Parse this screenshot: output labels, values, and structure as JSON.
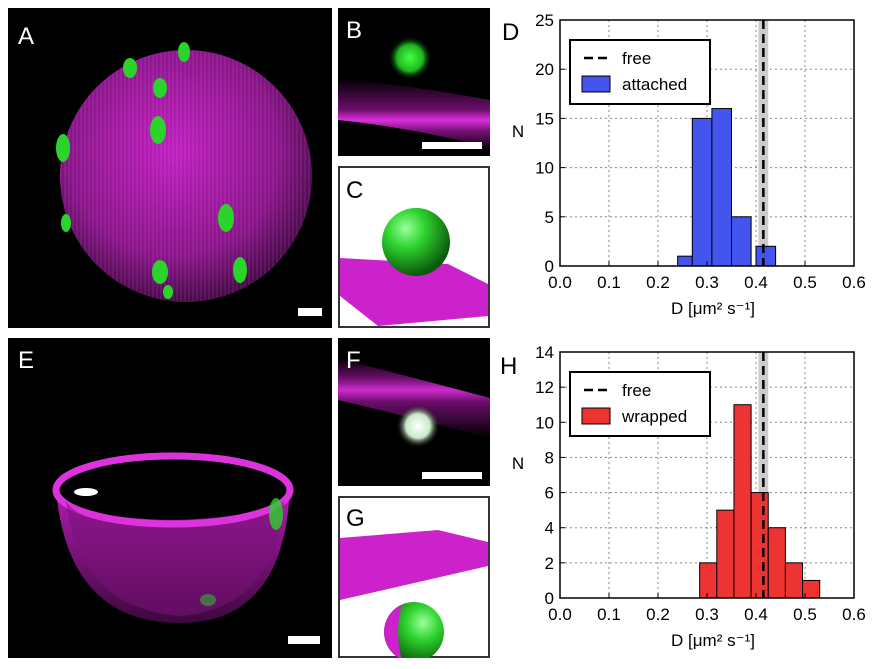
{
  "figure": {
    "panel_labels": {
      "A": "A",
      "B": "B",
      "C": "C",
      "D": "D",
      "E": "E",
      "F": "F",
      "G": "G",
      "H": "H"
    }
  },
  "colors": {
    "membrane": "#cc22cc",
    "particle": "#22cc22",
    "attached": "#4455ee",
    "wrapped": "#ee3333",
    "free_band": "#cccccc"
  },
  "chart_data": [
    {
      "type": "bar",
      "panel": "D",
      "xlabel": "D [μm² s⁻¹]",
      "ylabel": "N",
      "xlim": [
        0.0,
        0.6
      ],
      "ylim": [
        0,
        25
      ],
      "xticks": [
        "0.0",
        "0.1",
        "0.2",
        "0.3",
        "0.4",
        "0.5",
        "0.6"
      ],
      "yticks": [
        "0",
        "5",
        "10",
        "15",
        "20",
        "25"
      ],
      "grid": true,
      "legend_position": "top-left",
      "legend": [
        "free",
        "attached"
      ],
      "free_line": 0.415,
      "free_band": [
        0.405,
        0.425
      ],
      "bins": [
        {
          "x0": 0.24,
          "x1": 0.27,
          "n": 1
        },
        {
          "x0": 0.27,
          "x1": 0.31,
          "n": 15
        },
        {
          "x0": 0.31,
          "x1": 0.35,
          "n": 16
        },
        {
          "x0": 0.35,
          "x1": 0.39,
          "n": 5
        },
        {
          "x0": 0.39,
          "x1": 0.4,
          "n": 0
        },
        {
          "x0": 0.4,
          "x1": 0.44,
          "n": 2
        }
      ]
    },
    {
      "type": "bar",
      "panel": "H",
      "xlabel": "D [μm² s⁻¹]",
      "ylabel": "N",
      "xlim": [
        0.0,
        0.6
      ],
      "ylim": [
        0,
        14
      ],
      "xticks": [
        "0.0",
        "0.1",
        "0.2",
        "0.3",
        "0.4",
        "0.5",
        "0.6"
      ],
      "yticks": [
        "0",
        "2",
        "4",
        "6",
        "8",
        "10",
        "12",
        "14"
      ],
      "grid": true,
      "legend_position": "top-left",
      "legend": [
        "free",
        "wrapped"
      ],
      "free_line": 0.415,
      "free_band": [
        0.405,
        0.425
      ],
      "bins": [
        {
          "x0": 0.285,
          "x1": 0.32,
          "n": 2
        },
        {
          "x0": 0.32,
          "x1": 0.355,
          "n": 5
        },
        {
          "x0": 0.355,
          "x1": 0.39,
          "n": 11
        },
        {
          "x0": 0.39,
          "x1": 0.425,
          "n": 6
        },
        {
          "x0": 0.425,
          "x1": 0.46,
          "n": 4
        },
        {
          "x0": 0.46,
          "x1": 0.495,
          "n": 2
        },
        {
          "x0": 0.495,
          "x1": 0.53,
          "n": 1
        }
      ]
    }
  ]
}
